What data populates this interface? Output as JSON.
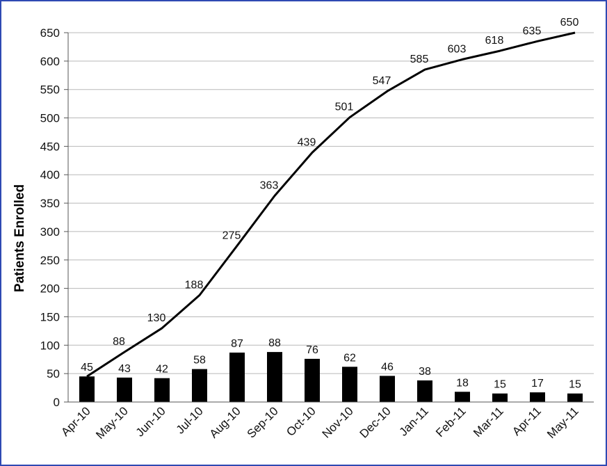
{
  "chart_data": {
    "type": "bar",
    "title": "",
    "xlabel": "",
    "ylabel": "Patients Enrolled",
    "ylim": [
      0,
      650
    ],
    "y_ticks": [
      0,
      50,
      100,
      150,
      200,
      250,
      300,
      350,
      400,
      450,
      500,
      550,
      600,
      650
    ],
    "grid": "horizontal",
    "categories": [
      "Apr-10",
      "May-10",
      "Jun-10",
      "Jul-10",
      "Aug-10",
      "Sep-10",
      "Oct-10",
      "Nov-10",
      "Dec-10",
      "Jan-11",
      "Feb-11",
      "Mar-11",
      "Apr-11",
      "May-11"
    ],
    "series": [
      {
        "type": "bar",
        "color": "#000000",
        "values": [
          45,
          43,
          42,
          58,
          87,
          88,
          76,
          62,
          46,
          38,
          18,
          15,
          17,
          15
        ]
      },
      {
        "type": "line",
        "color": "#000000",
        "values": [
          45,
          88,
          130,
          188,
          275,
          363,
          439,
          501,
          547,
          585,
          603,
          618,
          635,
          650
        ]
      }
    ],
    "frame_color": "#2f49b3",
    "grid_color": "#b8b8b8"
  }
}
